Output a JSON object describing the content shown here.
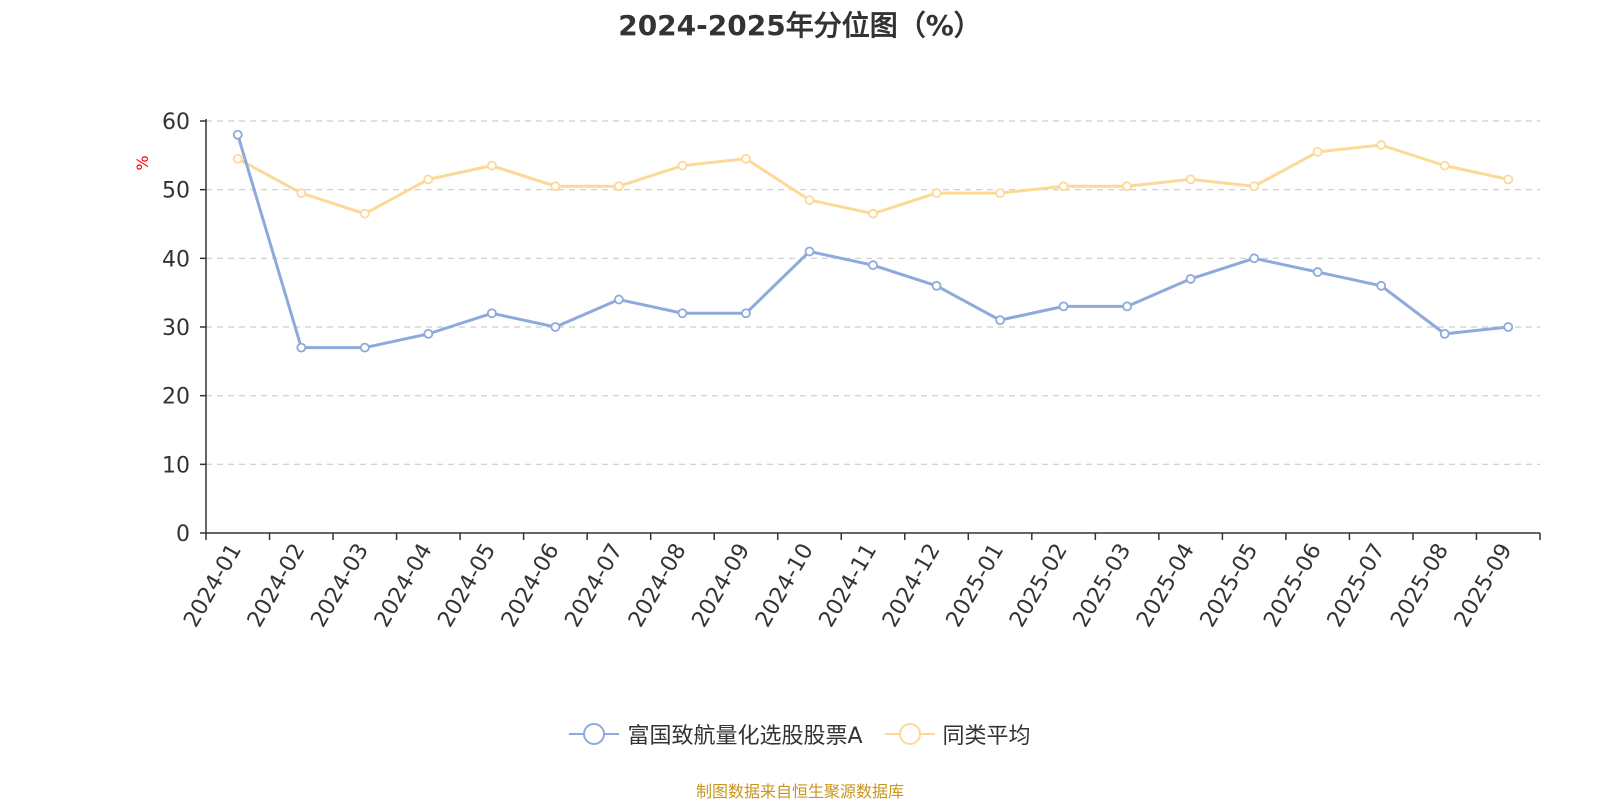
{
  "title": "2024-2025年分位图（%）",
  "source_note": "制图数据来自恒生聚源数据库",
  "colors": {
    "series1": "#8eaadb",
    "series2": "#fcd999",
    "ylabel": "#ff0000",
    "grid": "#cccccc",
    "axis": "#333333"
  },
  "chart_data": {
    "type": "line",
    "title": "2024-2025年分位图（%）",
    "ylabel": "%",
    "xlabel": "",
    "ylim": [
      0,
      60
    ],
    "yticks": [
      0,
      10,
      20,
      30,
      40,
      50,
      60
    ],
    "grid": true,
    "legend_position": "bottom-center",
    "categories": [
      "2024-01",
      "2024-02",
      "2024-03",
      "2024-04",
      "2024-05",
      "2024-06",
      "2024-07",
      "2024-08",
      "2024-09",
      "2024-10",
      "2024-11",
      "2024-12",
      "2025-01",
      "2025-02",
      "2025-03",
      "2025-04",
      "2025-05",
      "2025-06",
      "2025-07",
      "2025-08",
      "2025-09"
    ],
    "series": [
      {
        "name": "富国致航量化选股股票A",
        "color": "#8eaadb",
        "values": [
          58,
          27,
          27,
          29,
          32,
          30,
          34,
          32,
          32,
          41,
          39,
          36,
          31,
          33,
          33,
          37,
          40,
          38,
          36,
          29,
          30
        ]
      },
      {
        "name": "同类平均",
        "color": "#fcd999",
        "values": [
          54.5,
          49.5,
          46.5,
          51.5,
          53.5,
          50.5,
          50.5,
          53.5,
          54.5,
          48.5,
          46.5,
          49.5,
          49.5,
          50.5,
          50.5,
          51.5,
          50.5,
          55.5,
          56.5,
          53.5,
          51.5
        ]
      }
    ]
  }
}
